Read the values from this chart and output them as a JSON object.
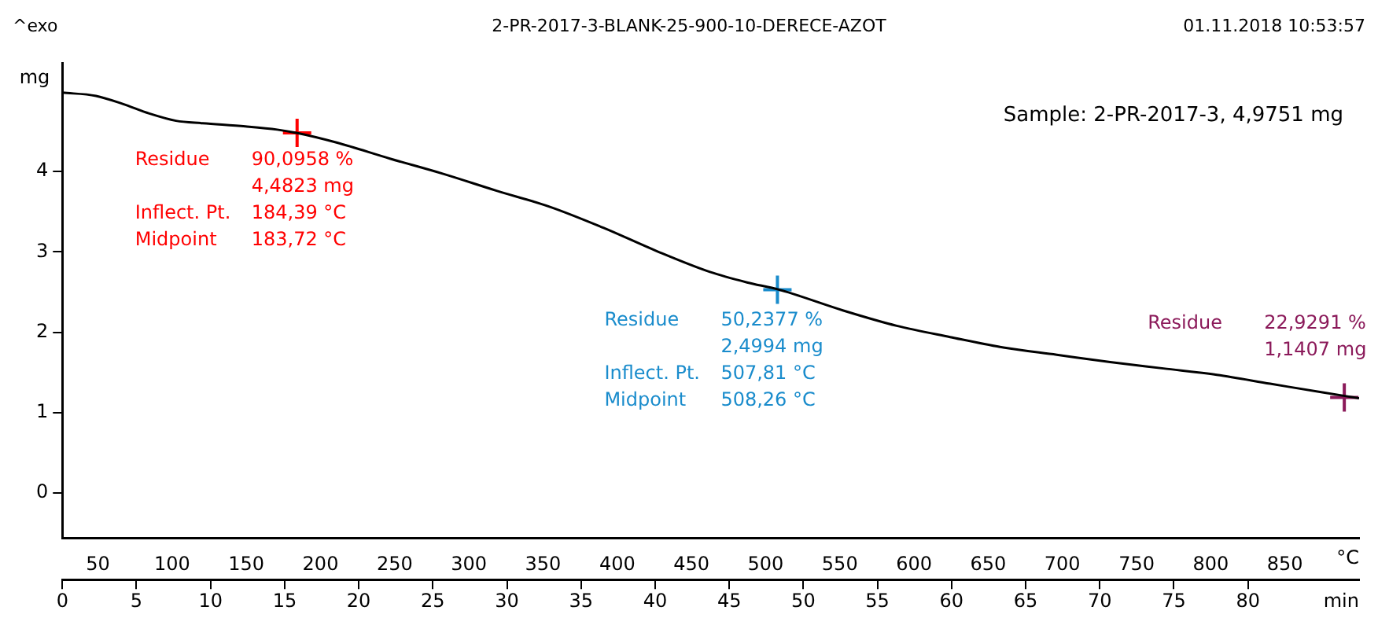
{
  "chart_data": {
    "type": "line",
    "title": "2-PR-2017-3-BLANK-25-900-10-DERECE-AZOT",
    "annotations": [
      "^exo",
      "01.11.2018 10:53:57",
      "Sample: 2-PR-2017-3, 4,9751 mg",
      {
        "text": "Residue\t90,0958 %\n\t4,4823 mg\nInflect. Pt.\t184,39 °C\nMidpoint\t183,72 °C",
        "x": 15.84,
        "y": 4.48
      },
      {
        "text": "Residue\t50,2377 %\n\t2,4994 mg\nInflect. Pt.\t507,81 °C\nMidpoint\t508,26 °C",
        "x": 48.25,
        "y": 2.53
      },
      {
        "text": "Residue\t22,9291 %\n\t1,1407 mg",
        "x": 86.5,
        "y": 1.19
      }
    ],
    "ylabel": "mg",
    "xlabel": "min",
    "x2label": "°C",
    "xlim": [
      0,
      87.5
    ],
    "xticks": [
      0,
      5,
      10,
      15,
      20,
      25,
      30,
      35,
      40,
      45,
      50,
      55,
      60,
      65,
      70,
      75,
      80
    ],
    "x2lim": [
      26,
      900
    ],
    "x2ticks": [
      50,
      100,
      150,
      200,
      250,
      300,
      350,
      400,
      450,
      500,
      550,
      600,
      650,
      700,
      750,
      800,
      850
    ],
    "ylim": [
      -0.56,
      5.35
    ],
    "yticks": [
      0,
      1,
      2,
      3,
      4
    ],
    "grid": false,
    "legend": false,
    "series": [
      {
        "color": "#000000",
        "x": [
          0,
          2.27,
          4.07,
          5.87,
          7.67,
          9.47,
          12.35,
          14.5,
          15.8,
          18.5,
          22.1,
          25.7,
          29.3,
          32.9,
          36.5,
          40.1,
          43.7,
          46.2,
          48.35,
          52.7,
          56.3,
          59.9,
          63.5,
          67.1,
          70.7,
          74.3,
          77.9,
          81.5,
          85.1,
          87.5
        ],
        "values": [
          4.98,
          4.94,
          4.84,
          4.72,
          4.63,
          4.6,
          4.56,
          4.52,
          4.48,
          4.36,
          4.16,
          3.97,
          3.76,
          3.56,
          3.3,
          3.01,
          2.75,
          2.62,
          2.53,
          2.27,
          2.08,
          1.94,
          1.81,
          1.72,
          1.63,
          1.55,
          1.47,
          1.36,
          1.25,
          1.18
        ]
      },
      {
        "type": "scatter",
        "marker": "cross",
        "colors": [
          "#ff0000",
          "#1a8ccc",
          "#8b1a5a"
        ],
        "x": [
          15.84,
          48.25,
          86.5
        ],
        "values": [
          4.48,
          2.53,
          1.19
        ]
      }
    ]
  }
}
